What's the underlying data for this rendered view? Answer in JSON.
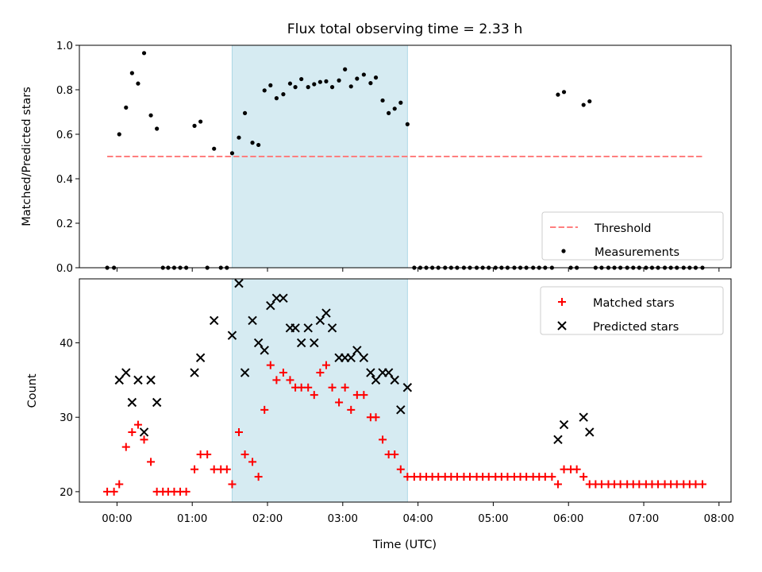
{
  "chart_data": [
    {
      "type": "scatter",
      "title": "Flux total observing time = 2.33 h",
      "xlabel": "",
      "ylabel": "Matched/Predicted stars",
      "ylim": [
        0,
        1.0
      ],
      "yticks": [
        "0.0",
        "0.2",
        "0.4",
        "0.6",
        "0.8",
        "1.0"
      ],
      "shaded_span": {
        "start": 1.53,
        "end": 3.86
      },
      "legend": {
        "position": "lower-right"
      },
      "series": [
        {
          "name": "Threshold",
          "type": "line",
          "style": "dashed",
          "color": "#ff7f7f",
          "x": [
            -0.13,
            7.78
          ],
          "y": [
            0.5,
            0.5
          ]
        },
        {
          "name": "Measurements",
          "type": "scatter",
          "marker": "dot",
          "color": "#000000",
          "points": [
            [
              -0.13,
              0.0
            ],
            [
              -0.04,
              0.0
            ],
            [
              0.03,
              0.6
            ],
            [
              0.12,
              0.72
            ],
            [
              0.2,
              0.875
            ],
            [
              0.28,
              0.828
            ],
            [
              0.36,
              0.965
            ],
            [
              0.45,
              0.685
            ],
            [
              0.53,
              0.625
            ],
            [
              0.61,
              0.0
            ],
            [
              0.68,
              0.0
            ],
            [
              0.76,
              0.0
            ],
            [
              0.84,
              0.0
            ],
            [
              0.92,
              0.0
            ],
            [
              1.03,
              0.638
            ],
            [
              1.11,
              0.657
            ],
            [
              1.2,
              0.0
            ],
            [
              1.29,
              0.535
            ],
            [
              1.38,
              0.0
            ],
            [
              1.46,
              0.0
            ],
            [
              1.53,
              0.515
            ],
            [
              1.62,
              0.585
            ],
            [
              1.7,
              0.695
            ],
            [
              1.8,
              0.562
            ],
            [
              1.88,
              0.552
            ],
            [
              1.96,
              0.797
            ],
            [
              2.04,
              0.82
            ],
            [
              2.12,
              0.762
            ],
            [
              2.21,
              0.78
            ],
            [
              2.3,
              0.828
            ],
            [
              2.37,
              0.812
            ],
            [
              2.45,
              0.848
            ],
            [
              2.54,
              0.812
            ],
            [
              2.62,
              0.825
            ],
            [
              2.7,
              0.835
            ],
            [
              2.78,
              0.838
            ],
            [
              2.86,
              0.812
            ],
            [
              2.95,
              0.842
            ],
            [
              3.03,
              0.892
            ],
            [
              3.11,
              0.815
            ],
            [
              3.19,
              0.85
            ],
            [
              3.28,
              0.868
            ],
            [
              3.37,
              0.83
            ],
            [
              3.44,
              0.855
            ],
            [
              3.53,
              0.752
            ],
            [
              3.61,
              0.695
            ],
            [
              3.69,
              0.715
            ],
            [
              3.77,
              0.742
            ],
            [
              3.86,
              0.645
            ],
            [
              3.95,
              0.0
            ],
            [
              4.03,
              0.0
            ],
            [
              4.11,
              0.0
            ],
            [
              4.19,
              0.0
            ],
            [
              4.27,
              0.0
            ],
            [
              4.36,
              0.0
            ],
            [
              4.44,
              0.0
            ],
            [
              4.52,
              0.0
            ],
            [
              4.61,
              0.0
            ],
            [
              4.69,
              0.0
            ],
            [
              4.78,
              0.0
            ],
            [
              4.86,
              0.0
            ],
            [
              4.94,
              0.0
            ],
            [
              5.03,
              0.0
            ],
            [
              5.11,
              0.0
            ],
            [
              5.19,
              0.0
            ],
            [
              5.28,
              0.0
            ],
            [
              5.36,
              0.0
            ],
            [
              5.44,
              0.0
            ],
            [
              5.53,
              0.0
            ],
            [
              5.61,
              0.0
            ],
            [
              5.69,
              0.0
            ],
            [
              5.78,
              0.0
            ],
            [
              5.86,
              0.778
            ],
            [
              5.94,
              0.79
            ],
            [
              6.03,
              0.0
            ],
            [
              6.11,
              0.0
            ],
            [
              6.2,
              0.732
            ],
            [
              6.28,
              0.748
            ],
            [
              6.36,
              0.0
            ],
            [
              6.44,
              0.0
            ],
            [
              6.53,
              0.0
            ],
            [
              6.61,
              0.0
            ],
            [
              6.69,
              0.0
            ],
            [
              6.78,
              0.0
            ],
            [
              6.86,
              0.0
            ],
            [
              6.94,
              0.0
            ],
            [
              7.03,
              0.0
            ],
            [
              7.11,
              0.0
            ],
            [
              7.19,
              0.0
            ],
            [
              7.28,
              0.0
            ],
            [
              7.36,
              0.0
            ],
            [
              7.44,
              0.0
            ],
            [
              7.53,
              0.0
            ],
            [
              7.61,
              0.0
            ],
            [
              7.69,
              0.0
            ],
            [
              7.78,
              0.0
            ]
          ]
        }
      ]
    },
    {
      "type": "scatter",
      "title": "",
      "xlabel": "Time (UTC)",
      "ylabel": "Count",
      "ylim": [
        18.6,
        48.6
      ],
      "yticks": [
        "20",
        "30",
        "40"
      ],
      "xticks": [
        "00:00",
        "01:00",
        "02:00",
        "03:00",
        "04:00",
        "05:00",
        "06:00",
        "07:00",
        "08:00"
      ],
      "xlim": [
        -0.5,
        8.16
      ],
      "shaded_span": {
        "start": 1.53,
        "end": 3.86
      },
      "legend": {
        "position": "upper-right"
      },
      "series": [
        {
          "name": "Matched stars",
          "type": "scatter",
          "marker": "plus",
          "color": "#ff0000",
          "points": [
            [
              -0.13,
              20
            ],
            [
              -0.04,
              20
            ],
            [
              0.03,
              21
            ],
            [
              0.12,
              26
            ],
            [
              0.2,
              28
            ],
            [
              0.28,
              29
            ],
            [
              0.36,
              27
            ],
            [
              0.45,
              24
            ],
            [
              0.53,
              20
            ],
            [
              0.61,
              20
            ],
            [
              0.68,
              20
            ],
            [
              0.76,
              20
            ],
            [
              0.84,
              20
            ],
            [
              0.92,
              20
            ],
            [
              1.03,
              23
            ],
            [
              1.11,
              25
            ],
            [
              1.2,
              25
            ],
            [
              1.29,
              23
            ],
            [
              1.38,
              23
            ],
            [
              1.46,
              23
            ],
            [
              1.53,
              21
            ],
            [
              1.62,
              28
            ],
            [
              1.7,
              25
            ],
            [
              1.8,
              24
            ],
            [
              1.88,
              22
            ],
            [
              1.96,
              31
            ],
            [
              2.04,
              37
            ],
            [
              2.12,
              35
            ],
            [
              2.21,
              36
            ],
            [
              2.3,
              35
            ],
            [
              2.37,
              34
            ],
            [
              2.45,
              34
            ],
            [
              2.54,
              34
            ],
            [
              2.62,
              33
            ],
            [
              2.7,
              36
            ],
            [
              2.78,
              37
            ],
            [
              2.86,
              34
            ],
            [
              2.95,
              32
            ],
            [
              3.03,
              34
            ],
            [
              3.11,
              31
            ],
            [
              3.19,
              33
            ],
            [
              3.28,
              33
            ],
            [
              3.37,
              30
            ],
            [
              3.44,
              30
            ],
            [
              3.53,
              27
            ],
            [
              3.61,
              25
            ],
            [
              3.69,
              25
            ],
            [
              3.77,
              23
            ],
            [
              3.86,
              22
            ],
            [
              3.95,
              22
            ],
            [
              4.03,
              22
            ],
            [
              4.11,
              22
            ],
            [
              4.19,
              22
            ],
            [
              4.27,
              22
            ],
            [
              4.36,
              22
            ],
            [
              4.44,
              22
            ],
            [
              4.52,
              22
            ],
            [
              4.61,
              22
            ],
            [
              4.69,
              22
            ],
            [
              4.78,
              22
            ],
            [
              4.86,
              22
            ],
            [
              4.94,
              22
            ],
            [
              5.03,
              22
            ],
            [
              5.11,
              22
            ],
            [
              5.19,
              22
            ],
            [
              5.28,
              22
            ],
            [
              5.36,
              22
            ],
            [
              5.44,
              22
            ],
            [
              5.53,
              22
            ],
            [
              5.61,
              22
            ],
            [
              5.69,
              22
            ],
            [
              5.78,
              22
            ],
            [
              5.86,
              21
            ],
            [
              5.94,
              23
            ],
            [
              6.03,
              23
            ],
            [
              6.11,
              23
            ],
            [
              6.2,
              22
            ],
            [
              6.28,
              21
            ],
            [
              6.36,
              21
            ],
            [
              6.44,
              21
            ],
            [
              6.53,
              21
            ],
            [
              6.61,
              21
            ],
            [
              6.69,
              21
            ],
            [
              6.78,
              21
            ],
            [
              6.86,
              21
            ],
            [
              6.94,
              21
            ],
            [
              7.03,
              21
            ],
            [
              7.11,
              21
            ],
            [
              7.19,
              21
            ],
            [
              7.28,
              21
            ],
            [
              7.36,
              21
            ],
            [
              7.44,
              21
            ],
            [
              7.53,
              21
            ],
            [
              7.61,
              21
            ],
            [
              7.69,
              21
            ],
            [
              7.78,
              21
            ]
          ]
        },
        {
          "name": "Predicted stars",
          "type": "scatter",
          "marker": "x",
          "color": "#000000",
          "points": [
            [
              0.03,
              35
            ],
            [
              0.12,
              36
            ],
            [
              0.2,
              32
            ],
            [
              0.28,
              35
            ],
            [
              0.36,
              28
            ],
            [
              0.45,
              35
            ],
            [
              0.53,
              32
            ],
            [
              1.03,
              36
            ],
            [
              1.11,
              38
            ],
            [
              1.29,
              43
            ],
            [
              1.53,
              41
            ],
            [
              1.62,
              48
            ],
            [
              1.7,
              36
            ],
            [
              1.8,
              43
            ],
            [
              1.88,
              40
            ],
            [
              1.96,
              39
            ],
            [
              2.04,
              45
            ],
            [
              2.12,
              46
            ],
            [
              2.21,
              46
            ],
            [
              2.3,
              42
            ],
            [
              2.37,
              42
            ],
            [
              2.45,
              40
            ],
            [
              2.54,
              42
            ],
            [
              2.62,
              40
            ],
            [
              2.7,
              43
            ],
            [
              2.78,
              44
            ],
            [
              2.86,
              42
            ],
            [
              2.95,
              38
            ],
            [
              3.03,
              38
            ],
            [
              3.11,
              38
            ],
            [
              3.19,
              39
            ],
            [
              3.28,
              38
            ],
            [
              3.37,
              36
            ],
            [
              3.44,
              35
            ],
            [
              3.53,
              36
            ],
            [
              3.61,
              36
            ],
            [
              3.69,
              35
            ],
            [
              3.77,
              31
            ],
            [
              3.86,
              34
            ],
            [
              5.86,
              27
            ],
            [
              5.94,
              29
            ],
            [
              6.2,
              30
            ],
            [
              6.28,
              28
            ]
          ]
        }
      ]
    }
  ]
}
